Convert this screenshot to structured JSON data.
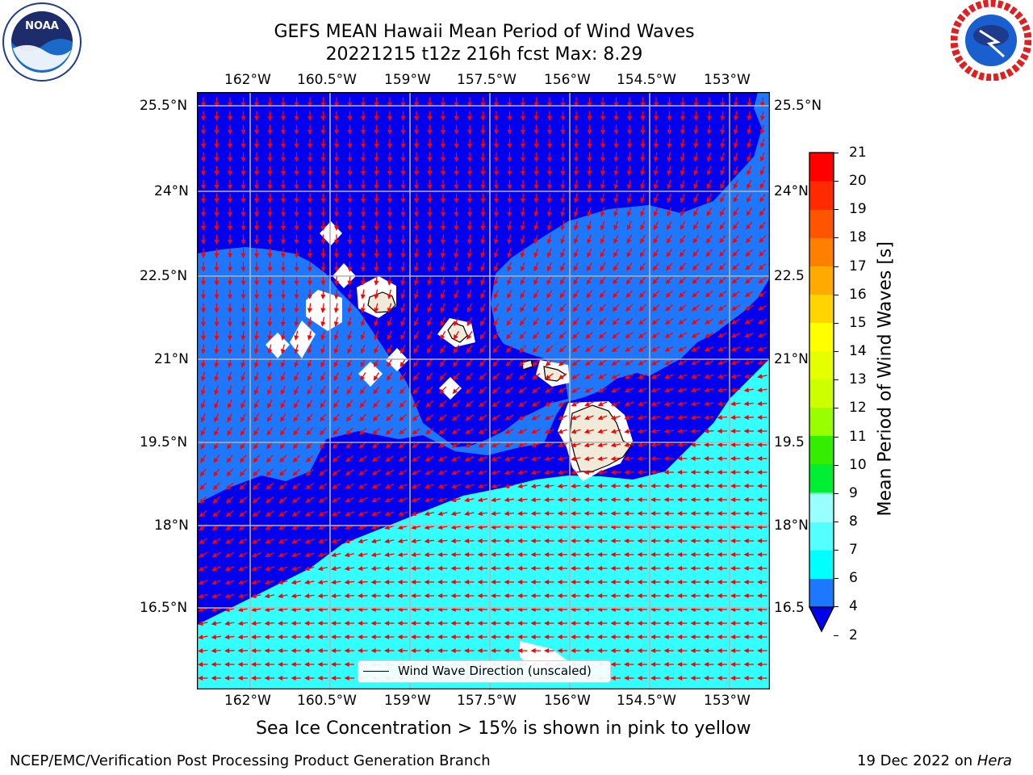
{
  "title": {
    "line1": "GEFS MEAN Hawaii Mean Period of Wind Waves",
    "line2": "20221215 t12z 216h fcst   Max: 8.29"
  },
  "logos": {
    "noaa": {
      "text": "NOAA",
      "icon": "noaa-logo-icon"
    },
    "nws": {
      "icon": "national-weather-service-logo-icon"
    }
  },
  "map": {
    "lon_labels": [
      "162°W",
      "160.5°W",
      "159°W",
      "157.5°W",
      "156°W",
      "154.5°W",
      "153°W"
    ],
    "lat_labels": [
      "25.5°N",
      "24°N",
      "22.5°N",
      "21°N",
      "19.5°N",
      "18°N",
      "16.5°N"
    ],
    "lat_labels_right": [
      "25.5°N",
      "24°N",
      "22.5",
      "21°N",
      "19.5",
      "18°N",
      "16.5"
    ],
    "legend": "Wind Wave Direction (unscaled)",
    "colors": {
      "band_2_4": "#0000ee",
      "band_4_6": "#1e78ff",
      "band_6_8": "#33ffff",
      "land": "#efebd8",
      "arrows": "#ff0000",
      "grid": "#b0b0b0"
    }
  },
  "colorbar": {
    "label": "Mean Period of Wind Waves [s]",
    "ticks": [
      "21",
      "20",
      "19",
      "18",
      "17",
      "16",
      "15",
      "14",
      "13",
      "12",
      "11",
      "10",
      "9",
      "8",
      "7",
      "6",
      "4",
      "2"
    ]
  },
  "caption": "Sea Ice Concentration > 15% is shown in pink to yellow",
  "footer": {
    "left": "NCEP/EMC/Verification Post Processing Product Generation Branch",
    "right_prefix": "19 Dec 2022 on ",
    "right_host": "Hera"
  }
}
